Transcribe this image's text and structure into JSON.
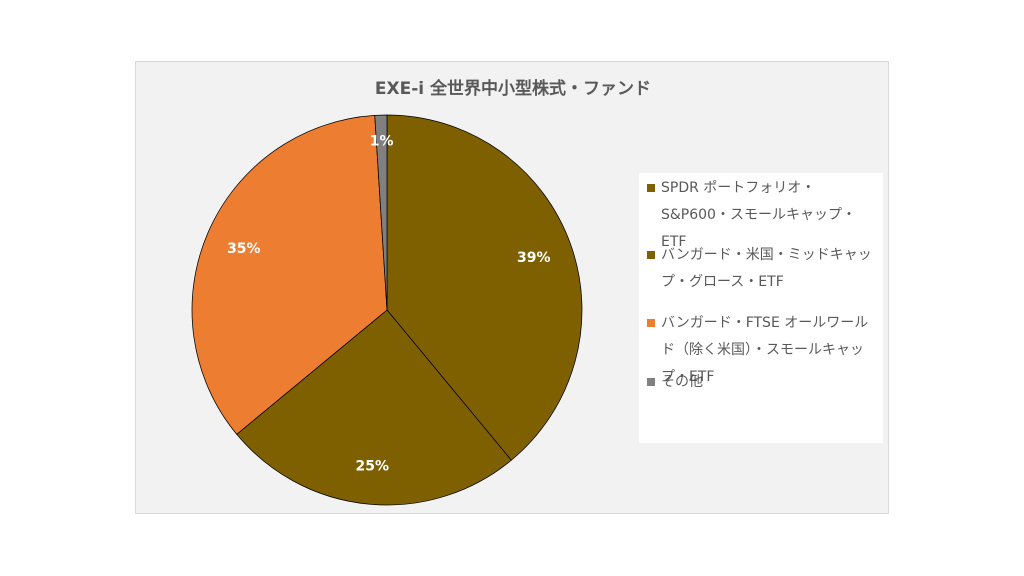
{
  "chart_data": {
    "type": "pie",
    "title": "EXE-i 全世界中小型株式・ファンド",
    "categories": [
      "SPDR ポートフォリオ・S&P600・スモールキャップ・ETF",
      "バンガード・米国・ミッドキャップ・グロース・ETF",
      "バンガード・FTSE オールワールド（除く米国）・スモールキャップ・ETF",
      "その他"
    ],
    "values": [
      39,
      25,
      35,
      1
    ],
    "data_labels": [
      "39%",
      "25%",
      "35%",
      "1%"
    ],
    "colors": [
      "#7f6000",
      "#7f6000",
      "#ed7d31",
      "#808080"
    ],
    "legend_position": "right",
    "start_angle_deg": 0,
    "direction": "clockwise"
  }
}
